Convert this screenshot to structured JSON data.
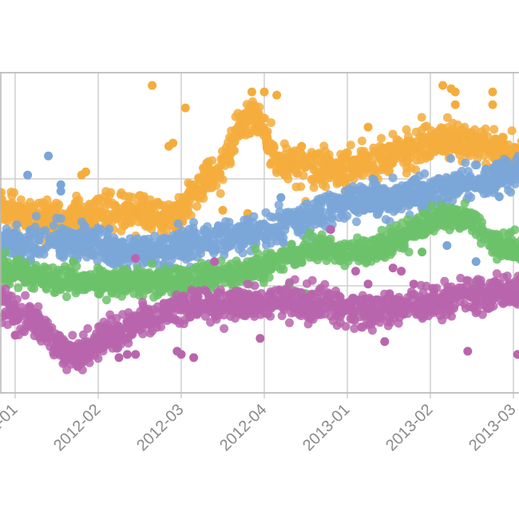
{
  "chart_data": {
    "type": "scatter",
    "title": "",
    "xlabel": "",
    "ylabel": "",
    "grid": true,
    "legend": "none",
    "x_ticks": [
      "2012-01",
      "2012-02",
      "2012-03",
      "2012-04",
      "2013-01",
      "2013-02",
      "2013-03"
    ],
    "y_range": [
      0,
      1
    ],
    "series": [
      {
        "color": "#f4ad3d",
        "trend": [
          [
            -0.2,
            0.58
          ],
          [
            0.0,
            0.56
          ],
          [
            0.3,
            0.545
          ],
          [
            0.6,
            0.545
          ],
          [
            0.9,
            0.55
          ],
          [
            1.2,
            0.56
          ],
          [
            1.5,
            0.565
          ],
          [
            1.8,
            0.55
          ],
          [
            2.0,
            0.56
          ],
          [
            2.1,
            0.6
          ],
          [
            2.3,
            0.66
          ],
          [
            2.5,
            0.72
          ],
          [
            2.65,
            0.8
          ],
          [
            2.75,
            0.85
          ],
          [
            2.9,
            0.86
          ],
          [
            3.05,
            0.78
          ],
          [
            3.15,
            0.72
          ],
          [
            3.35,
            0.71
          ],
          [
            3.6,
            0.7
          ],
          [
            3.9,
            0.69
          ],
          [
            4.1,
            0.71
          ],
          [
            4.4,
            0.74
          ],
          [
            4.7,
            0.76
          ],
          [
            5.0,
            0.78
          ],
          [
            5.3,
            0.79
          ],
          [
            5.6,
            0.78
          ],
          [
            5.9,
            0.75
          ],
          [
            6.2,
            0.74
          ]
        ],
        "spread": 0.05,
        "outliers": [
          [
            1.65,
            0.96
          ],
          [
            2.05,
            0.89
          ],
          [
            1.9,
            0.78
          ],
          [
            1.85,
            0.77
          ],
          [
            0.85,
            0.69
          ],
          [
            0.8,
            0.68
          ],
          [
            3.0,
            0.94
          ],
          [
            2.85,
            0.94
          ],
          [
            3.15,
            0.93
          ],
          [
            4.25,
            0.83
          ],
          [
            5.15,
            0.96
          ],
          [
            5.25,
            0.95
          ],
          [
            5.3,
            0.94
          ],
          [
            5.75,
            0.94
          ],
          [
            5.75,
            0.9
          ],
          [
            5.3,
            0.9
          ],
          [
            0.25,
            0.44
          ],
          [
            1.3,
            0.44
          ],
          [
            0.85,
            0.44
          ],
          [
            1.45,
            0.56
          ],
          [
            2.5,
            0.57
          ],
          [
            2.8,
            0.56
          ],
          [
            3.45,
            0.77
          ],
          [
            3.3,
            0.7
          ]
        ]
      },
      {
        "color": "#7aa6d8",
        "trend": [
          [
            -0.2,
            0.47
          ],
          [
            0.1,
            0.46
          ],
          [
            0.4,
            0.475
          ],
          [
            0.7,
            0.47
          ],
          [
            0.95,
            0.47
          ],
          [
            1.2,
            0.44
          ],
          [
            1.45,
            0.44
          ],
          [
            1.7,
            0.44
          ],
          [
            2.0,
            0.46
          ],
          [
            2.3,
            0.48
          ],
          [
            2.6,
            0.49
          ],
          [
            2.9,
            0.505
          ],
          [
            3.2,
            0.52
          ],
          [
            3.5,
            0.545
          ],
          [
            3.8,
            0.58
          ],
          [
            4.1,
            0.6
          ],
          [
            4.4,
            0.605
          ],
          [
            4.7,
            0.615
          ],
          [
            5.0,
            0.625
          ],
          [
            5.3,
            0.64
          ],
          [
            5.6,
            0.66
          ],
          [
            5.9,
            0.68
          ],
          [
            6.2,
            0.7
          ]
        ],
        "spread": 0.045,
        "outliers": [
          [
            0.15,
            0.68
          ],
          [
            0.4,
            0.74
          ],
          [
            0.55,
            0.65
          ],
          [
            0.55,
            0.63
          ],
          [
            4.2,
            0.57
          ],
          [
            5.15,
            0.53
          ],
          [
            3.2,
            0.61
          ],
          [
            2.3,
            0.5
          ],
          [
            5.2,
            0.46
          ],
          [
            5.55,
            0.41
          ]
        ]
      },
      {
        "color": "#6cc26a",
        "trend": [
          [
            -0.2,
            0.39
          ],
          [
            0.1,
            0.375
          ],
          [
            0.4,
            0.355
          ],
          [
            0.7,
            0.35
          ],
          [
            1.0,
            0.345
          ],
          [
            1.3,
            0.345
          ],
          [
            1.6,
            0.35
          ],
          [
            1.9,
            0.355
          ],
          [
            2.2,
            0.36
          ],
          [
            2.5,
            0.37
          ],
          [
            2.8,
            0.38
          ],
          [
            3.1,
            0.41
          ],
          [
            3.4,
            0.43
          ],
          [
            3.7,
            0.455
          ],
          [
            4.0,
            0.44
          ],
          [
            4.3,
            0.445
          ],
          [
            4.6,
            0.48
          ],
          [
            4.9,
            0.52
          ],
          [
            5.2,
            0.55
          ],
          [
            5.5,
            0.54
          ],
          [
            5.8,
            0.46
          ],
          [
            6.1,
            0.44
          ]
        ],
        "spread": 0.035,
        "outliers": [
          [
            0.7,
            0.41
          ],
          [
            0.9,
            0.34
          ],
          [
            1.1,
            0.34
          ],
          [
            2.0,
            0.32
          ],
          [
            3.3,
            0.34
          ],
          [
            3.5,
            0.31
          ],
          [
            4.2,
            0.24
          ],
          [
            5.0,
            0.51
          ],
          [
            4.9,
            0.44
          ],
          [
            5.55,
            0.34
          ],
          [
            6.0,
            0.33
          ],
          [
            -0.15,
            0.4
          ]
        ]
      },
      {
        "color": "#b965ad",
        "trend": [
          [
            -0.2,
            0.28
          ],
          [
            0.1,
            0.25
          ],
          [
            0.3,
            0.21
          ],
          [
            0.5,
            0.16
          ],
          [
            0.65,
            0.12
          ],
          [
            0.8,
            0.12
          ],
          [
            0.95,
            0.15
          ],
          [
            1.1,
            0.18
          ],
          [
            1.3,
            0.2
          ],
          [
            1.6,
            0.23
          ],
          [
            1.9,
            0.255
          ],
          [
            2.2,
            0.265
          ],
          [
            2.5,
            0.275
          ],
          [
            2.8,
            0.275
          ],
          [
            3.1,
            0.285
          ],
          [
            3.4,
            0.285
          ],
          [
            3.7,
            0.27
          ],
          [
            4.0,
            0.26
          ],
          [
            4.3,
            0.255
          ],
          [
            4.6,
            0.265
          ],
          [
            4.9,
            0.275
          ],
          [
            5.2,
            0.29
          ],
          [
            5.5,
            0.3
          ],
          [
            5.8,
            0.31
          ],
          [
            6.2,
            0.31
          ]
        ],
        "spread": 0.045,
        "outliers": [
          [
            0.0,
            0.18
          ],
          [
            1.35,
            0.12
          ],
          [
            1.25,
            0.11
          ],
          [
            1.45,
            0.12
          ],
          [
            1.95,
            0.13
          ],
          [
            2.0,
            0.12
          ],
          [
            2.15,
            0.11
          ],
          [
            2.95,
            0.17
          ],
          [
            4.1,
            0.38
          ],
          [
            4.25,
            0.34
          ],
          [
            4.55,
            0.39
          ],
          [
            4.65,
            0.38
          ],
          [
            4.8,
            0.34
          ],
          [
            4.45,
            0.16
          ],
          [
            5.45,
            0.13
          ],
          [
            6.05,
            0.12
          ],
          [
            1.45,
            0.42
          ],
          [
            3.8,
            0.51
          ],
          [
            2.4,
            0.41
          ]
        ]
      }
    ]
  }
}
